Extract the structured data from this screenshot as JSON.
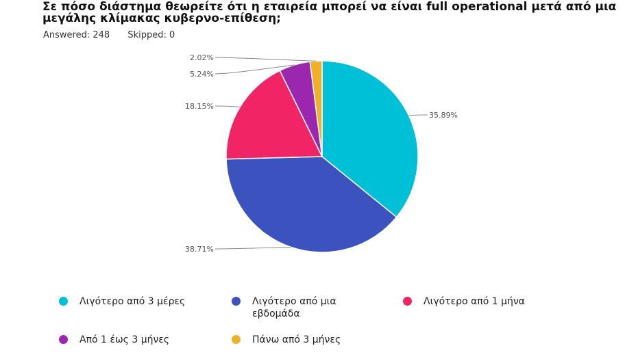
{
  "header": {
    "title": "Σε πόσο διάστημα θεωρείτε ότι η εταιρεία μπορεί να είναι full operational μετά από μια μεγάλης κλίμακας κυβερνο-επίθεση;",
    "answered": "Answered: 248",
    "skipped": "Skipped: 0"
  },
  "chart_data": {
    "type": "pie",
    "title": "Σε πόσο διάστημα θεωρείτε ότι η εταιρεία μπορεί να είναι full operational μετά από μια μεγάλης κλίμακας κυβερνο-επίθεση;",
    "labels": [
      "Λιγότερο από 3 μέρες",
      "Λιγότερο από μια εβδομάδα",
      "Λιγότερο από 1 μήνα",
      "Από 1 έως 3 μήνες",
      "Πάνω από 3 μήνες"
    ],
    "values": [
      35.89,
      38.71,
      18.15,
      5.24,
      2.02
    ],
    "value_labels": [
      "35.89%",
      "38.71%",
      "18.15%",
      "5.24%",
      "2.02%"
    ],
    "colors": [
      "#00c0d8",
      "#3b52bf",
      "#f12466",
      "#9b27af",
      "#f0b02a"
    ],
    "legend_position": "bottom"
  }
}
